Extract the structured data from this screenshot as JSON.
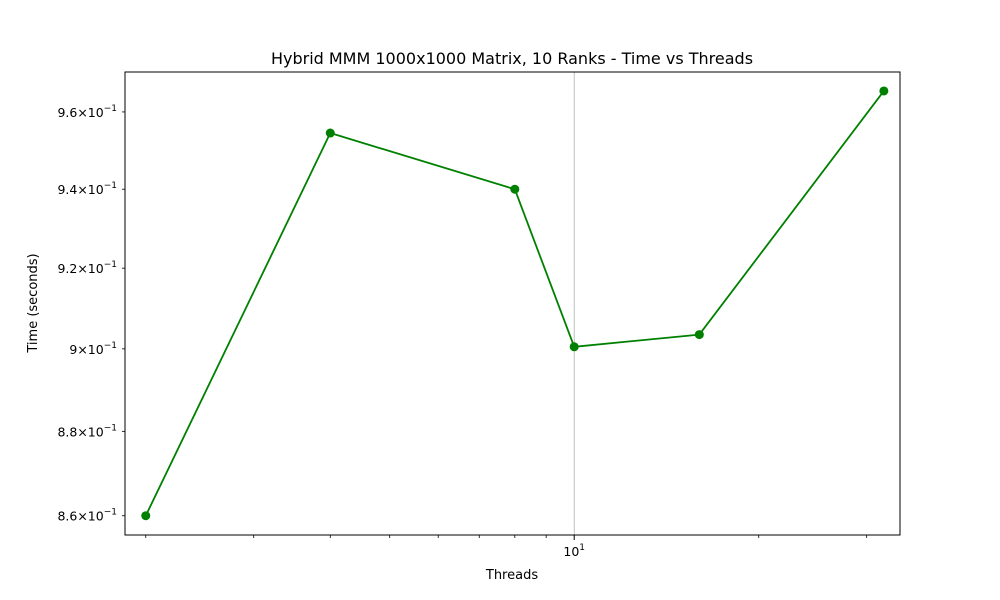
{
  "chart_data": {
    "type": "line",
    "title": "Hybrid MMM 1000x1000 Matrix, 10 Ranks - Time vs Threads",
    "xlabel": "Threads",
    "ylabel": "Time (seconds)",
    "xscale": "log",
    "yscale": "log",
    "xlim": [
      1.85,
      34
    ],
    "ylim": [
      0.8555,
      0.9705
    ],
    "grid": "vertical major x gridline only",
    "x_major_ticks": [
      {
        "value": 10,
        "base": "10",
        "exp": "1"
      }
    ],
    "x_minor_ticks": [
      2,
      3,
      4,
      5,
      6,
      7,
      8,
      9,
      20,
      30
    ],
    "y_ticks": [
      {
        "value": 0.86,
        "mant": "8.6",
        "base": "10",
        "exp": "−1"
      },
      {
        "value": 0.88,
        "mant": "8.8",
        "base": "10",
        "exp": "−1"
      },
      {
        "value": 0.9,
        "mant": "9",
        "base": "10",
        "exp": "−1"
      },
      {
        "value": 0.92,
        "mant": "9.2",
        "base": "10",
        "exp": "−1"
      },
      {
        "value": 0.94,
        "mant": "9.4",
        "base": "10",
        "exp": "−1"
      },
      {
        "value": 0.96,
        "mant": "9.6",
        "base": "10",
        "exp": "−1"
      }
    ],
    "series": [
      {
        "color": "#008000",
        "marker": "circle",
        "x": [
          2,
          4,
          8,
          10,
          16,
          32
        ],
        "y": [
          0.86,
          0.9545,
          0.94,
          0.9005,
          0.9035,
          0.9655
        ]
      }
    ]
  }
}
